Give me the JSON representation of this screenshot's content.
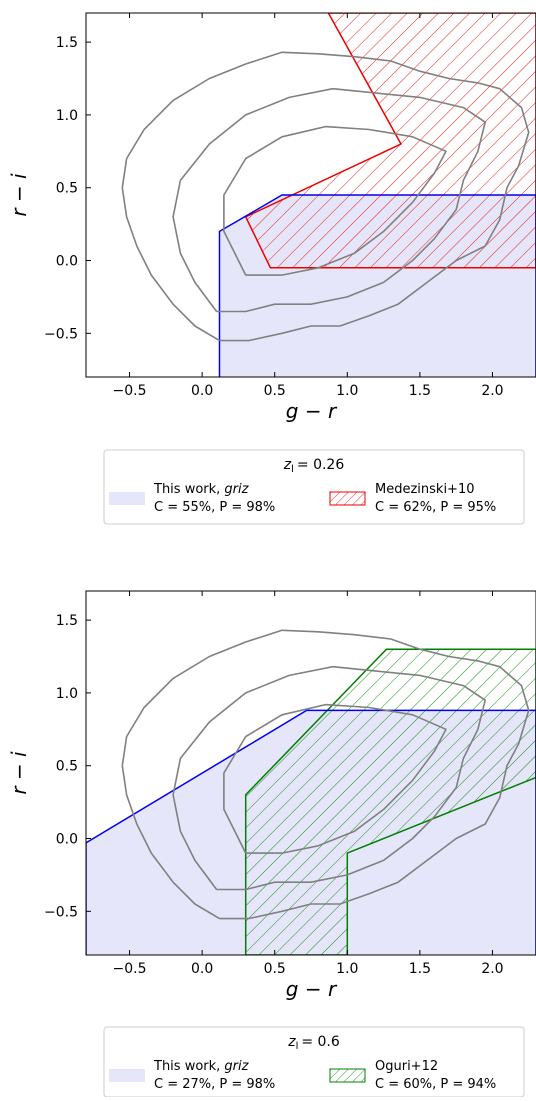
{
  "chart_data": [
    {
      "type": "area",
      "xlabel": "g − r",
      "ylabel": "r − i",
      "xlim": [
        -0.8,
        2.3
      ],
      "ylim": [
        -0.8,
        1.7
      ],
      "xticks": [
        -0.5,
        0.0,
        0.5,
        1.0,
        1.5,
        2.0
      ],
      "yticks": [
        -0.5,
        0.0,
        0.5,
        1.0,
        1.5
      ],
      "xtick_labels": [
        "−0.5",
        "0.0",
        "0.5",
        "1.0",
        "1.5",
        "2.0"
      ],
      "ytick_labels": [
        "−0.5",
        "0.0",
        "0.5",
        "1.0",
        "1.5"
      ],
      "legend": {
        "placement": "below",
        "title_var": "z",
        "title_sub": "l",
        "title_value": "= 0.26",
        "entries": [
          {
            "label_main": "This work, ",
            "label_italic": "griz",
            "stats": "C = 55%, P = 98%"
          },
          {
            "label_main": "Medezinski+10",
            "label_italic": "",
            "stats": "C = 62%, P = 95%"
          }
        ]
      },
      "colors": {
        "this_work": "#0000ee",
        "this_work_fill": "#e6e6fb",
        "comparison": "#ee0000",
        "contour": "#808080"
      },
      "this_work_region": [
        [
          0.12,
          -0.8
        ],
        [
          0.12,
          0.2
        ],
        [
          0.55,
          0.45
        ],
        [
          2.3,
          0.45
        ],
        [
          2.3,
          -0.8
        ]
      ],
      "comparison_region": [
        [
          0.3,
          0.3
        ],
        [
          1.37,
          0.8
        ],
        [
          0.87,
          1.7
        ],
        [
          2.3,
          1.7
        ],
        [
          2.3,
          -0.05
        ],
        [
          0.47,
          -0.05
        ]
      ],
      "contours": [
        [
          [
            0.12,
            -0.55
          ],
          [
            0.32,
            -0.55
          ],
          [
            0.55,
            -0.5
          ],
          [
            0.75,
            -0.45
          ],
          [
            0.95,
            -0.45
          ],
          [
            1.15,
            -0.38
          ],
          [
            1.35,
            -0.3
          ],
          [
            1.55,
            -0.15
          ],
          [
            1.75,
            0.0
          ],
          [
            1.95,
            0.1
          ],
          [
            2.05,
            0.28
          ],
          [
            2.1,
            0.5
          ],
          [
            2.18,
            0.65
          ],
          [
            2.25,
            0.88
          ],
          [
            2.2,
            1.05
          ],
          [
            2.05,
            1.18
          ],
          [
            1.9,
            1.22
          ],
          [
            1.7,
            1.25
          ],
          [
            1.5,
            1.3
          ],
          [
            1.3,
            1.37
          ],
          [
            1.05,
            1.4
          ],
          [
            0.8,
            1.42
          ],
          [
            0.55,
            1.43
          ],
          [
            0.3,
            1.35
          ],
          [
            0.05,
            1.25
          ],
          [
            -0.2,
            1.1
          ],
          [
            -0.4,
            0.9
          ],
          [
            -0.52,
            0.7
          ],
          [
            -0.55,
            0.5
          ],
          [
            -0.52,
            0.3
          ],
          [
            -0.45,
            0.1
          ],
          [
            -0.35,
            -0.1
          ],
          [
            -0.2,
            -0.3
          ],
          [
            -0.05,
            -0.45
          ],
          [
            0.12,
            -0.55
          ]
        ],
        [
          [
            0.1,
            -0.35
          ],
          [
            0.3,
            -0.35
          ],
          [
            0.5,
            -0.3
          ],
          [
            0.75,
            -0.3
          ],
          [
            1.0,
            -0.25
          ],
          [
            1.25,
            -0.15
          ],
          [
            1.45,
            0.0
          ],
          [
            1.6,
            0.15
          ],
          [
            1.75,
            0.35
          ],
          [
            1.8,
            0.55
          ],
          [
            1.9,
            0.75
          ],
          [
            1.95,
            0.95
          ],
          [
            1.8,
            1.05
          ],
          [
            1.5,
            1.12
          ],
          [
            1.2,
            1.15
          ],
          [
            0.9,
            1.18
          ],
          [
            0.6,
            1.12
          ],
          [
            0.3,
            1.0
          ],
          [
            0.05,
            0.8
          ],
          [
            -0.15,
            0.55
          ],
          [
            -0.2,
            0.3
          ],
          [
            -0.15,
            0.05
          ],
          [
            -0.05,
            -0.15
          ],
          [
            0.1,
            -0.35
          ]
        ],
        [
          [
            0.3,
            -0.1
          ],
          [
            0.55,
            -0.1
          ],
          [
            0.8,
            -0.05
          ],
          [
            1.05,
            0.05
          ],
          [
            1.25,
            0.2
          ],
          [
            1.45,
            0.4
          ],
          [
            1.6,
            0.6
          ],
          [
            1.68,
            0.75
          ],
          [
            1.45,
            0.85
          ],
          [
            1.15,
            0.9
          ],
          [
            0.85,
            0.92
          ],
          [
            0.55,
            0.85
          ],
          [
            0.3,
            0.7
          ],
          [
            0.15,
            0.45
          ],
          [
            0.15,
            0.2
          ],
          [
            0.3,
            -0.1
          ]
        ]
      ]
    },
    {
      "type": "area",
      "xlabel": "g − r",
      "ylabel": "r − i",
      "xlim": [
        -0.8,
        2.3
      ],
      "ylim": [
        -0.8,
        1.7
      ],
      "xticks": [
        -0.5,
        0.0,
        0.5,
        1.0,
        1.5,
        2.0
      ],
      "yticks": [
        -0.5,
        0.0,
        0.5,
        1.0,
        1.5
      ],
      "xtick_labels": [
        "−0.5",
        "0.0",
        "0.5",
        "1.0",
        "1.5",
        "2.0"
      ],
      "ytick_labels": [
        "−0.5",
        "0.0",
        "0.5",
        "1.0",
        "1.5"
      ],
      "legend": {
        "placement": "below",
        "title_var": "z",
        "title_sub": "l",
        "title_value": "= 0.6",
        "entries": [
          {
            "label_main": "This work, ",
            "label_italic": "griz",
            "stats": "C = 27%, P = 98%"
          },
          {
            "label_main": "Oguri+12",
            "label_italic": "",
            "stats": "C = 60%, P = 94%"
          }
        ]
      },
      "colors": {
        "this_work": "#0000ee",
        "this_work_fill": "#e6e6fb",
        "comparison": "#008000",
        "contour": "#808080"
      },
      "this_work_region": [
        [
          -0.8,
          -0.8
        ],
        [
          -0.8,
          -0.03
        ],
        [
          0.72,
          0.88
        ],
        [
          2.3,
          0.88
        ],
        [
          2.3,
          -0.8
        ]
      ],
      "comparison_region": [
        [
          0.3,
          -0.8
        ],
        [
          0.3,
          0.3
        ],
        [
          1.27,
          1.3
        ],
        [
          2.3,
          1.3
        ],
        [
          2.3,
          0.42
        ],
        [
          1.0,
          -0.1
        ],
        [
          1.0,
          -0.8
        ]
      ],
      "contours": [
        [
          [
            0.12,
            -0.55
          ],
          [
            0.32,
            -0.55
          ],
          [
            0.55,
            -0.5
          ],
          [
            0.75,
            -0.45
          ],
          [
            0.95,
            -0.45
          ],
          [
            1.15,
            -0.38
          ],
          [
            1.35,
            -0.3
          ],
          [
            1.55,
            -0.15
          ],
          [
            1.75,
            0.0
          ],
          [
            1.95,
            0.1
          ],
          [
            2.05,
            0.28
          ],
          [
            2.1,
            0.5
          ],
          [
            2.18,
            0.65
          ],
          [
            2.25,
            0.88
          ],
          [
            2.2,
            1.05
          ],
          [
            2.05,
            1.18
          ],
          [
            1.9,
            1.22
          ],
          [
            1.7,
            1.25
          ],
          [
            1.5,
            1.3
          ],
          [
            1.3,
            1.37
          ],
          [
            1.05,
            1.4
          ],
          [
            0.8,
            1.42
          ],
          [
            0.55,
            1.43
          ],
          [
            0.3,
            1.35
          ],
          [
            0.05,
            1.25
          ],
          [
            -0.2,
            1.1
          ],
          [
            -0.4,
            0.9
          ],
          [
            -0.52,
            0.7
          ],
          [
            -0.55,
            0.5
          ],
          [
            -0.52,
            0.3
          ],
          [
            -0.45,
            0.1
          ],
          [
            -0.35,
            -0.1
          ],
          [
            -0.2,
            -0.3
          ],
          [
            -0.05,
            -0.45
          ],
          [
            0.12,
            -0.55
          ]
        ],
        [
          [
            0.1,
            -0.35
          ],
          [
            0.3,
            -0.35
          ],
          [
            0.5,
            -0.3
          ],
          [
            0.75,
            -0.3
          ],
          [
            1.0,
            -0.25
          ],
          [
            1.25,
            -0.15
          ],
          [
            1.45,
            0.0
          ],
          [
            1.6,
            0.15
          ],
          [
            1.75,
            0.35
          ],
          [
            1.8,
            0.55
          ],
          [
            1.9,
            0.75
          ],
          [
            1.95,
            0.95
          ],
          [
            1.8,
            1.05
          ],
          [
            1.5,
            1.12
          ],
          [
            1.2,
            1.15
          ],
          [
            0.9,
            1.18
          ],
          [
            0.6,
            1.12
          ],
          [
            0.3,
            1.0
          ],
          [
            0.05,
            0.8
          ],
          [
            -0.15,
            0.55
          ],
          [
            -0.2,
            0.3
          ],
          [
            -0.15,
            0.05
          ],
          [
            -0.05,
            -0.15
          ],
          [
            0.1,
            -0.35
          ]
        ],
        [
          [
            0.3,
            -0.1
          ],
          [
            0.55,
            -0.1
          ],
          [
            0.8,
            -0.05
          ],
          [
            1.05,
            0.05
          ],
          [
            1.25,
            0.2
          ],
          [
            1.45,
            0.4
          ],
          [
            1.6,
            0.6
          ],
          [
            1.68,
            0.75
          ],
          [
            1.45,
            0.85
          ],
          [
            1.15,
            0.9
          ],
          [
            0.85,
            0.92
          ],
          [
            0.55,
            0.85
          ],
          [
            0.3,
            0.7
          ],
          [
            0.15,
            0.45
          ],
          [
            0.15,
            0.2
          ],
          [
            0.3,
            -0.1
          ]
        ]
      ]
    }
  ]
}
